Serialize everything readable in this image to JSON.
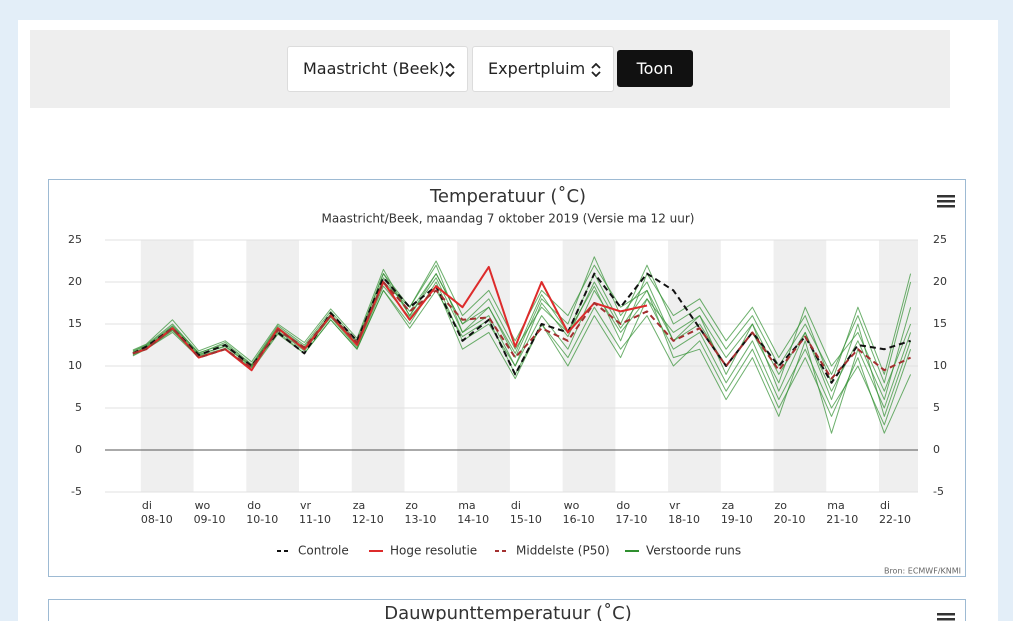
{
  "controls": {
    "location": "Maastricht (Beek)",
    "product": "Expertpluim",
    "button": "Toon"
  },
  "second_chart_title": "Dauwpunttemperatuur (˚C)",
  "chart_data": {
    "type": "line",
    "title": "Temperatuur (˚C)",
    "subtitle": "Maastricht/Beek, maandag 7 oktober 2019 (Versie ma 12 uur)",
    "source": "Bron: ECMWF/KNMI",
    "xlim": [
      -0.68,
      14.74
    ],
    "xticks": [
      {
        "value": 0,
        "label": "di"
      },
      {
        "value": 1,
        "label": "wo"
      },
      {
        "value": 2,
        "label": "do"
      },
      {
        "value": 3,
        "label": "vr"
      },
      {
        "value": 4,
        "label": "za"
      },
      {
        "value": 5,
        "label": "zo"
      },
      {
        "value": 6,
        "label": "ma"
      },
      {
        "value": 7,
        "label": "di"
      },
      {
        "value": 8,
        "label": "wo"
      },
      {
        "value": 9,
        "label": "do"
      },
      {
        "value": 10,
        "label": "vr"
      },
      {
        "value": 11,
        "label": "za"
      },
      {
        "value": 12,
        "label": "zo"
      },
      {
        "value": 13,
        "label": "ma"
      },
      {
        "value": 14,
        "label": "di"
      }
    ],
    "xtick_dates": [
      "08-10",
      "09-10",
      "10-10",
      "11-10",
      "12-10",
      "13-10",
      "14-10",
      "15-10",
      "16-10",
      "17-10",
      "18-10",
      "19-10",
      "20-10",
      "21-10",
      "22-10"
    ],
    "day_shading": true,
    "ylim": [
      -5,
      25
    ],
    "yticks": [
      -5,
      0,
      5,
      10,
      15,
      20,
      25
    ],
    "grid": true,
    "x": [
      -0.15,
      0.1,
      0.6,
      1.1,
      1.6,
      2.1,
      2.6,
      3.1,
      3.6,
      4.1,
      4.6,
      5.1,
      5.6,
      6.1,
      6.6,
      7.1,
      7.6,
      8.1,
      8.6,
      9.1,
      9.6,
      10.1,
      10.6,
      11.1,
      11.6,
      12.1,
      12.6,
      13.1,
      13.6,
      14.1,
      14.6
    ],
    "ensemble": {
      "name": "Verstoorde runs",
      "color": "#2f8f2f",
      "members": [
        [
          11.8,
          12.5,
          15,
          11.5,
          12.8,
          10.2,
          14.8,
          12.5,
          16.5,
          13,
          21,
          17,
          22,
          14,
          17,
          11,
          18,
          15,
          23,
          16,
          20,
          13,
          16,
          11,
          15,
          9,
          14,
          7,
          13,
          6,
          17
        ],
        [
          11.2,
          12,
          14,
          11,
          12,
          9.8,
          14,
          11.5,
          15.5,
          12,
          19,
          15,
          20,
          13,
          15,
          10,
          16,
          12,
          19,
          14,
          18,
          12,
          14,
          8,
          13,
          6,
          12,
          5,
          10,
          3,
          12
        ],
        [
          11.6,
          12.2,
          14.7,
          11.4,
          12.3,
          10,
          14.5,
          12,
          16,
          12.5,
          20.5,
          16.5,
          21,
          15,
          18,
          12,
          17,
          14,
          21,
          15,
          22,
          15,
          17,
          12,
          16,
          10,
          15,
          9,
          16,
          8,
          20
        ],
        [
          11.4,
          12.1,
          14.3,
          11.2,
          12.1,
          9.6,
          14.2,
          11.8,
          15.8,
          12.2,
          19.5,
          15.8,
          19.5,
          12,
          14,
          8.5,
          15,
          11,
          17,
          12,
          16,
          10,
          13,
          7,
          12,
          5,
          11,
          4,
          11,
          2,
          9
        ],
        [
          11.7,
          12.4,
          14.8,
          11.6,
          12.6,
          10.1,
          14.6,
          12.3,
          16.2,
          12.8,
          21,
          16,
          20.5,
          14,
          16,
          10,
          17.5,
          13.5,
          20,
          14.5,
          19,
          13,
          15,
          10,
          14,
          8,
          17,
          10,
          14,
          7,
          15
        ],
        [
          11.5,
          12.3,
          14.5,
          11.3,
          12.4,
          9.9,
          14.4,
          12.1,
          16.1,
          12.6,
          20,
          17,
          22.5,
          16,
          19,
          13,
          19,
          16,
          22,
          17,
          19,
          11,
          12,
          6,
          11,
          4,
          13,
          2,
          12,
          5,
          14
        ],
        [
          11.3,
          12,
          14.2,
          11.1,
          12,
          9.5,
          13.8,
          11.5,
          15.5,
          12,
          19,
          14.5,
          19,
          13.5,
          15.5,
          9,
          15,
          10,
          16,
          11,
          18,
          14,
          16,
          9,
          15,
          7,
          14,
          6,
          15,
          4,
          13
        ],
        [
          11.9,
          12.6,
          15.5,
          11.8,
          13,
          10.5,
          15,
          12.8,
          16.8,
          13.3,
          21.5,
          16,
          21,
          15,
          17,
          11.5,
          18.5,
          14,
          19.5,
          13,
          21,
          16,
          18,
          13,
          17,
          11,
          16,
          8,
          17,
          9,
          21
        ]
      ]
    },
    "series": [
      {
        "name": "Controle",
        "color": "#111111",
        "dash": true,
        "values": [
          11.5,
          12.3,
          14.5,
          11.3,
          12.5,
          10,
          14,
          11.5,
          16.3,
          13,
          20.5,
          17,
          19.5,
          13,
          15.5,
          9,
          15,
          14,
          21,
          17,
          21,
          19,
          14.5,
          10,
          14,
          10,
          13.5,
          8,
          12.5,
          12,
          13
        ]
      },
      {
        "name": "Hoge resolutie",
        "color": "#dd2b2b",
        "dash": false,
        "values": [
          11.5,
          12,
          14.5,
          11,
          12,
          9.5,
          14.5,
          12,
          16,
          12.5,
          20,
          15.5,
          19.5,
          17,
          21.8,
          12.3,
          20,
          14,
          17.5,
          16.5,
          17.2,
          null,
          null,
          null,
          null,
          null,
          null,
          null,
          null,
          null,
          null
        ]
      },
      {
        "name": "Middelste (P50)",
        "color": "#a33030",
        "dash": true,
        "values": [
          11.5,
          12,
          14.5,
          11,
          12,
          9.8,
          14.3,
          12.2,
          16,
          12.8,
          20,
          16.5,
          19,
          15.5,
          15.8,
          11,
          14.5,
          13,
          17.5,
          15,
          16.5,
          13,
          14.5,
          10,
          14,
          9.5,
          13.5,
          8.5,
          12,
          9.5,
          11
        ]
      }
    ]
  }
}
